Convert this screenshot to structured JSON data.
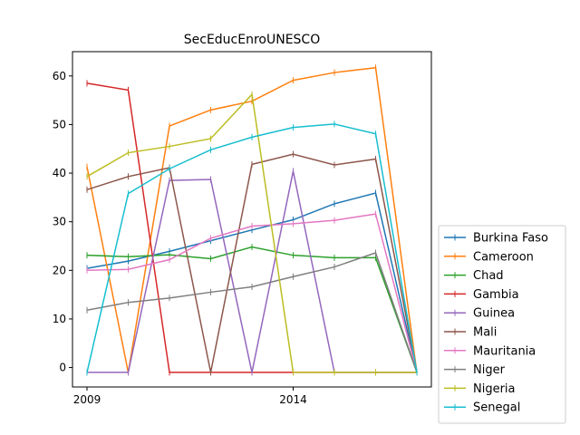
{
  "chart_data": {
    "type": "line",
    "title": "SecEducEnroUNESCO",
    "xlabel": "",
    "ylabel": "",
    "x": [
      2009,
      2010,
      2011,
      2012,
      2013,
      2014,
      2015,
      2016,
      2017
    ],
    "xlim": [
      2009,
      2017
    ],
    "ylim": [
      -4,
      65
    ],
    "x_ticks": [
      2009,
      2014
    ],
    "y_ticks": [
      0,
      10,
      20,
      30,
      40,
      50,
      60
    ],
    "grid": false,
    "legend_position": "outside right bottom",
    "series": [
      {
        "name": "Burkina Faso",
        "color": "#1f77b4",
        "values": [
          20.4,
          21.9,
          23.9,
          26.1,
          28.3,
          30.4,
          33.7,
          35.9,
          -1
        ]
      },
      {
        "name": "Cameroon",
        "color": "#ff7f0e",
        "values": [
          41.3,
          -1,
          49.7,
          53.0,
          54.8,
          59.1,
          60.7,
          61.7,
          -1
        ]
      },
      {
        "name": "Chad",
        "color": "#2ca02c",
        "values": [
          23.1,
          22.8,
          23.2,
          22.4,
          24.8,
          23.1,
          22.6,
          22.6,
          -1
        ]
      },
      {
        "name": "Gambia",
        "color": "#d62728",
        "values": [
          58.5,
          57.1,
          -1,
          -1,
          -1,
          -1,
          -1,
          -1,
          -1
        ]
      },
      {
        "name": "Guinea",
        "color": "#9467bd",
        "values": [
          -1,
          -1,
          38.5,
          38.7,
          -1,
          40.4,
          -1,
          -1,
          -1
        ]
      },
      {
        "name": "Mali",
        "color": "#8c564b",
        "values": [
          36.6,
          39.3,
          41.1,
          -1,
          41.8,
          43.9,
          41.7,
          42.9,
          -1
        ]
      },
      {
        "name": "Mauritania",
        "color": "#e377c2",
        "values": [
          20.0,
          20.2,
          22.2,
          26.6,
          29.1,
          29.6,
          30.3,
          31.6,
          -1
        ]
      },
      {
        "name": "Niger",
        "color": "#7f7f7f",
        "values": [
          11.8,
          13.4,
          14.3,
          15.5,
          16.6,
          18.7,
          20.7,
          23.6,
          -1
        ]
      },
      {
        "name": "Nigeria",
        "color": "#bcbd22",
        "values": [
          39.3,
          44.2,
          45.5,
          47.1,
          56.2,
          -1,
          -1,
          -1,
          -1
        ]
      },
      {
        "name": "Senegal",
        "color": "#17becf",
        "values": [
          -1,
          35.8,
          40.9,
          44.8,
          47.4,
          49.4,
          50.1,
          48.1,
          -1
        ]
      }
    ]
  }
}
